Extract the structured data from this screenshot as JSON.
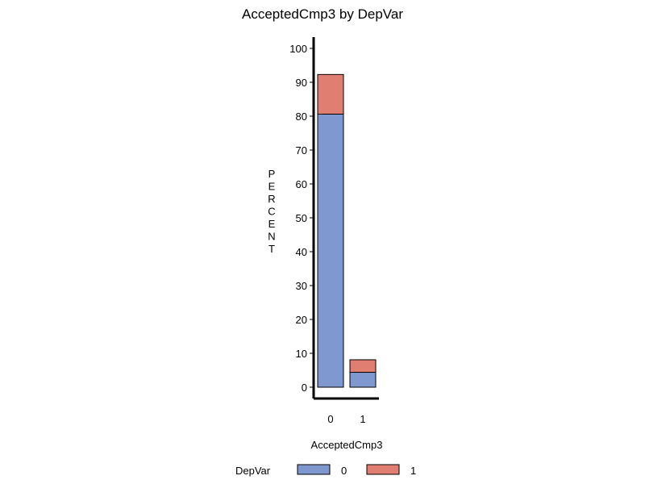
{
  "chart_data": {
    "type": "bar",
    "stacked": true,
    "title": "AcceptedCmp3  by  DepVar",
    "xlabel": "AcceptedCmp3",
    "ylabel": "PERCENT",
    "categories": [
      "0",
      "1"
    ],
    "series": [
      {
        "name": "0",
        "values": [
          80.6,
          4.4
        ],
        "color": "#7f98cf"
      },
      {
        "name": "1",
        "values": [
          11.7,
          3.7
        ],
        "color": "#e07f71"
      }
    ],
    "ylim": [
      0,
      100
    ],
    "yticks": [
      0,
      10,
      20,
      30,
      40,
      50,
      60,
      70,
      80,
      90,
      100
    ],
    "grid": false,
    "legend": {
      "title": "DepVar",
      "placement": "bottom"
    }
  }
}
